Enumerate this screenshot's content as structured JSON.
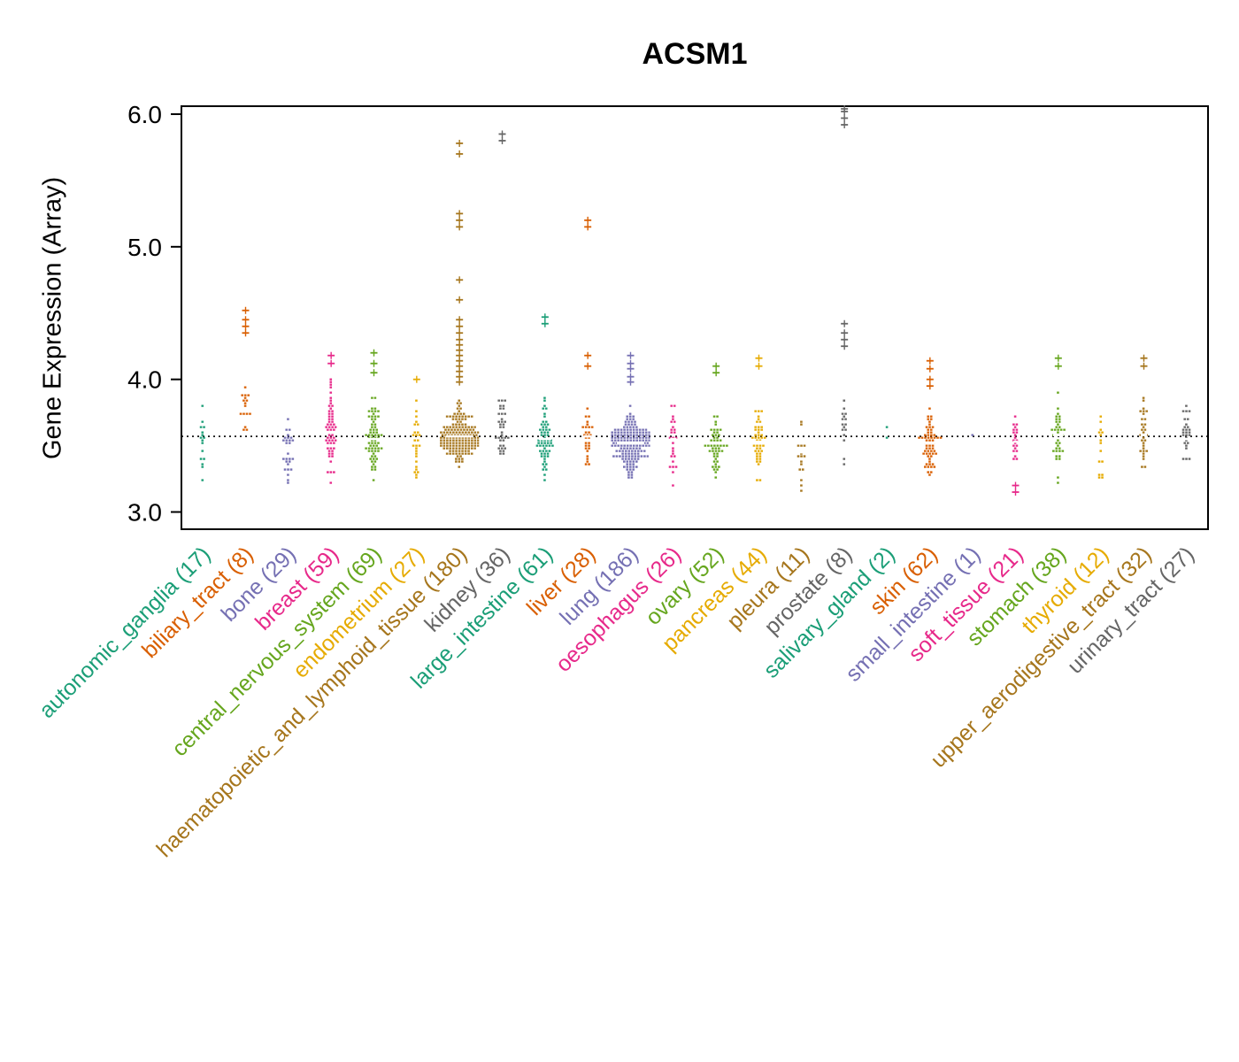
{
  "chart_data": {
    "type": "beeswarm-violin",
    "title": "ACSM1",
    "ylabel": "Gene Expression (Array)",
    "ytick_values": [
      3.0,
      4.0,
      5.0,
      6.0
    ],
    "ytick_labels": [
      "3.0",
      "4.0",
      "5.0",
      "6.0"
    ],
    "ylim": [
      2.87,
      6.06
    ],
    "grid": false,
    "reference_line_y": 3.57,
    "reference_line_style": "dotted",
    "palette": [
      "#1B9E77",
      "#D95F02",
      "#7570B3",
      "#E7298A",
      "#66A61E",
      "#E6AB02",
      "#A6761D",
      "#666666"
    ],
    "categories": [
      {
        "label": "autonomic_ganglia",
        "n": 17,
        "color": "#1B9E77",
        "center": 3.48,
        "spread": 0.17,
        "min": 3.08,
        "max": 3.97,
        "outliers": []
      },
      {
        "label": "biliary_tract",
        "n": 8,
        "color": "#D95F02",
        "center": 3.76,
        "spread": 0.1,
        "min": 3.58,
        "max": 3.97,
        "outliers": [
          4.35,
          4.4,
          4.45,
          4.52
        ]
      },
      {
        "label": "bone",
        "n": 29,
        "color": "#7570B3",
        "center": 3.5,
        "spread": 0.13,
        "min": 2.96,
        "max": 3.78,
        "outliers": []
      },
      {
        "label": "breast",
        "n": 59,
        "color": "#E7298A",
        "center": 3.6,
        "spread": 0.17,
        "min": 3.06,
        "max": 4.05,
        "outliers": [
          4.12,
          4.18
        ]
      },
      {
        "label": "central_nervous_system",
        "n": 69,
        "color": "#66A61E",
        "center": 3.55,
        "spread": 0.13,
        "min": 3.18,
        "max": 3.95,
        "outliers": [
          4.05,
          4.12,
          4.2
        ]
      },
      {
        "label": "endometrium",
        "n": 27,
        "color": "#E6AB02",
        "center": 3.52,
        "spread": 0.15,
        "min": 3.18,
        "max": 3.95,
        "outliers": [
          4.0
        ]
      },
      {
        "label": "haematopoietic_and_lymphoid_tissue",
        "n": 180,
        "color": "#A6761D",
        "center": 3.57,
        "spread": 0.1,
        "min": 3.3,
        "max": 3.92,
        "outliers": [
          3.98,
          4.02,
          4.06,
          4.1,
          4.14,
          4.18,
          4.22,
          4.26,
          4.3,
          4.35,
          4.4,
          4.45,
          4.6,
          4.75,
          5.15,
          5.2,
          5.25,
          5.7,
          5.78
        ]
      },
      {
        "label": "kidney",
        "n": 36,
        "color": "#666666",
        "center": 3.62,
        "spread": 0.12,
        "min": 3.25,
        "max": 3.95,
        "outliers": [
          5.8,
          5.85
        ]
      },
      {
        "label": "large_intestine",
        "n": 61,
        "color": "#1B9E77",
        "center": 3.55,
        "spread": 0.13,
        "min": 3.2,
        "max": 3.95,
        "outliers": [
          4.42,
          4.47
        ]
      },
      {
        "label": "liver",
        "n": 28,
        "color": "#D95F02",
        "center": 3.57,
        "spread": 0.14,
        "min": 3.22,
        "max": 4.0,
        "outliers": [
          4.1,
          4.18,
          5.15,
          5.2
        ]
      },
      {
        "label": "lung",
        "n": 186,
        "color": "#7570B3",
        "center": 3.52,
        "spread": 0.11,
        "min": 3.25,
        "max": 3.92,
        "outliers": [
          3.98,
          4.02,
          4.08,
          4.12,
          4.18
        ]
      },
      {
        "label": "oesophagus",
        "n": 26,
        "color": "#E7298A",
        "center": 3.55,
        "spread": 0.13,
        "min": 3.2,
        "max": 3.9,
        "outliers": []
      },
      {
        "label": "ovary",
        "n": 52,
        "color": "#66A61E",
        "center": 3.52,
        "spread": 0.13,
        "min": 3.2,
        "max": 3.95,
        "outliers": [
          4.05,
          4.1
        ]
      },
      {
        "label": "pancreas",
        "n": 44,
        "color": "#E6AB02",
        "center": 3.53,
        "spread": 0.13,
        "min": 3.2,
        "max": 3.95,
        "outliers": [
          4.1,
          4.16
        ]
      },
      {
        "label": "pleura",
        "n": 11,
        "color": "#A6761D",
        "center": 3.45,
        "spread": 0.18,
        "min": 3.02,
        "max": 3.78,
        "outliers": []
      },
      {
        "label": "prostate",
        "n": 8,
        "color": "#666666",
        "center": 3.6,
        "spread": 0.14,
        "min": 3.33,
        "max": 3.88,
        "outliers": [
          4.25,
          4.3,
          4.35,
          4.42,
          5.92,
          5.97,
          6.02,
          6.06
        ]
      },
      {
        "label": "salivary_gland",
        "n": 2,
        "color": "#1B9E77",
        "points": [
          3.55,
          3.64
        ],
        "outliers": []
      },
      {
        "label": "skin",
        "n": 62,
        "color": "#D95F02",
        "center": 3.52,
        "spread": 0.12,
        "min": 3.25,
        "max": 3.85,
        "outliers": [
          3.95,
          4.0,
          4.08,
          4.14
        ]
      },
      {
        "label": "small_intestine",
        "n": 1,
        "color": "#7570B3",
        "points": [
          3.58
        ],
        "outliers": []
      },
      {
        "label": "soft_tissue",
        "n": 21,
        "color": "#E7298A",
        "center": 3.53,
        "spread": 0.1,
        "min": 3.35,
        "max": 3.75,
        "outliers": [
          3.15,
          3.2
        ]
      },
      {
        "label": "stomach",
        "n": 38,
        "color": "#66A61E",
        "center": 3.58,
        "spread": 0.14,
        "min": 3.2,
        "max": 4.0,
        "outliers": [
          4.1,
          4.16
        ]
      },
      {
        "label": "thyroid",
        "n": 12,
        "color": "#E6AB02",
        "center": 3.48,
        "spread": 0.13,
        "min": 3.25,
        "max": 3.75,
        "outliers": []
      },
      {
        "label": "upper_aerodigestive_tract",
        "n": 32,
        "color": "#A6761D",
        "center": 3.58,
        "spread": 0.16,
        "min": 3.2,
        "max": 4.0,
        "outliers": [
          4.1,
          4.16
        ]
      },
      {
        "label": "urinary_tract",
        "n": 27,
        "color": "#666666",
        "center": 3.55,
        "spread": 0.14,
        "min": 3.15,
        "max": 3.95,
        "outliers": []
      }
    ]
  }
}
